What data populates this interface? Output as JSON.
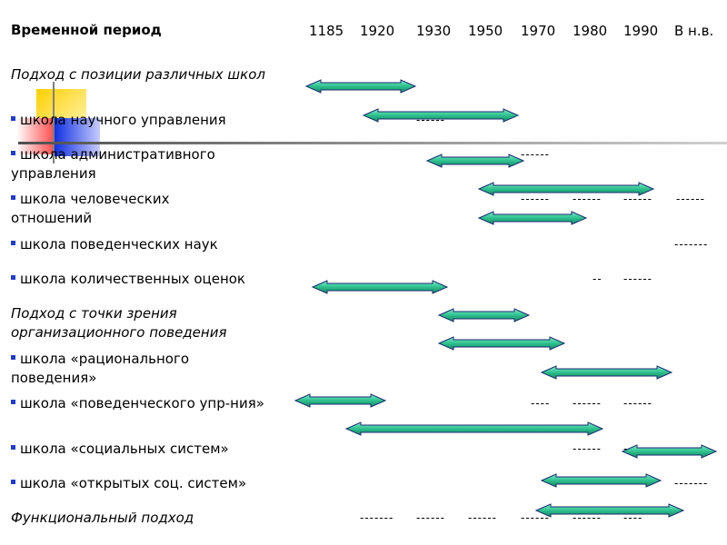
{
  "header": {
    "title": "Временной период",
    "years": [
      "1185",
      "1920",
      "1930",
      "1950",
      "1970",
      "1980",
      "1990",
      "В н.в."
    ]
  },
  "rows": [
    {
      "label": "Подход с позиции различных школ",
      "italic": true,
      "bullet": false
    },
    {
      "label": "школа научного управления",
      "italic": false,
      "bullet": true
    },
    {
      "label": "школа административного управления",
      "italic": false,
      "bullet": true
    },
    {
      "label": "школа человеческих отношений",
      "italic": false,
      "bullet": true
    },
    {
      "label": "школа поведенческих наук",
      "italic": false,
      "bullet": true
    },
    {
      "label": "школа количественных оценок",
      "italic": false,
      "bullet": true
    },
    {
      "label": "Подход с точки зрения организационного поведения",
      "italic": true,
      "bullet": false
    },
    {
      "label": "школа «рационального поведения»",
      "italic": false,
      "bullet": true
    },
    {
      "label": "школа «поведенческого упр-ния»",
      "italic": false,
      "bullet": true
    },
    {
      "label": "школа «социальных систем»",
      "italic": false,
      "bullet": true
    },
    {
      "label": "школа «открытых соц. систем»",
      "italic": false,
      "bullet": true
    },
    {
      "label": "Функциональный подход",
      "italic": true,
      "bullet": false
    }
  ],
  "dashes": [
    "------",
    "------",
    "------",
    "------",
    "------",
    "------",
    "-------",
    "--",
    "------",
    "----",
    "------",
    "------",
    "------",
    "------",
    "------",
    "-------",
    "-------",
    "------",
    "------",
    "------",
    "------",
    "----"
  ],
  "colors": {
    "arrow_fill": "#2ec08e",
    "arrow_stroke": "#1a2a70",
    "bullet": "#1f3bd1",
    "line": "#707070"
  }
}
